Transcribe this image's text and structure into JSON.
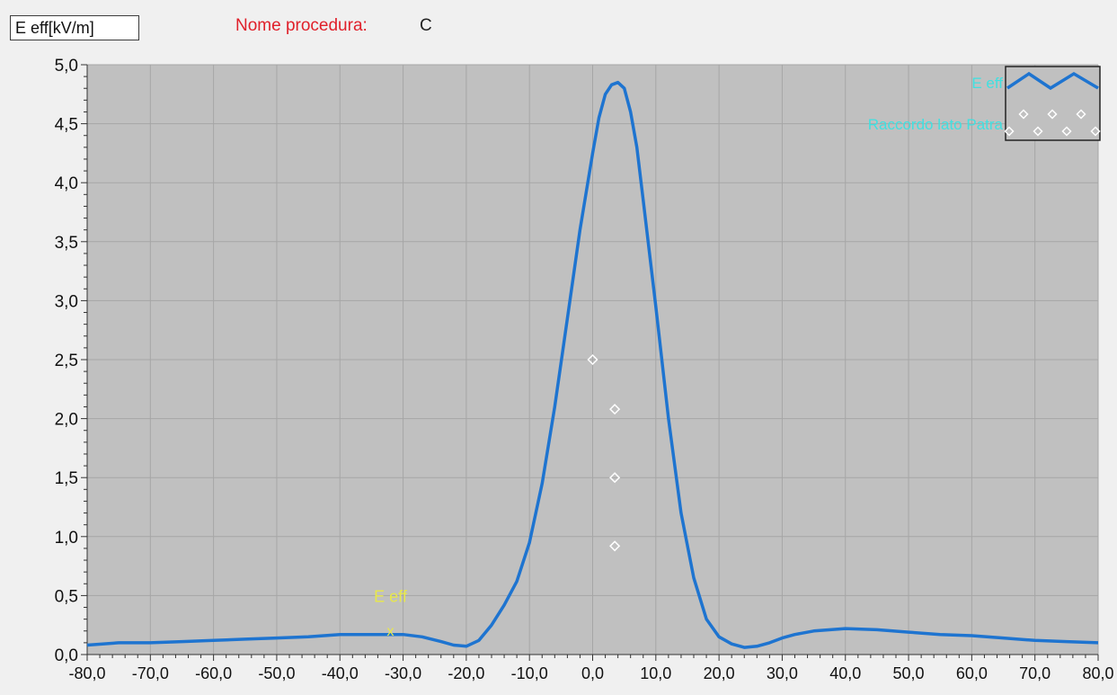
{
  "header": {
    "unit_label": "E eff[kV/m]",
    "procedure_label": "Nome procedura:",
    "procedure_value": "C"
  },
  "colors": {
    "plot_bg": "#c0c0c0",
    "grid": "#a6a6a6",
    "curve": "#1e74d0",
    "marker": "#ffffff",
    "cursor": "#e8e84a",
    "legend_text": "#40e0e0"
  },
  "chart_data": {
    "type": "line",
    "xlim": [
      -80,
      80
    ],
    "ylim": [
      0,
      5
    ],
    "x_ticks": [
      "-80,0",
      "-70,0",
      "-60,0",
      "-50,0",
      "-40,0",
      "-30,0",
      "-20,0",
      "-10,0",
      "0,0",
      "10,0",
      "20,0",
      "30,0",
      "40,0",
      "50,0",
      "60,0",
      "70,0",
      "80,0"
    ],
    "x_tick_values": [
      -80,
      -70,
      -60,
      -50,
      -40,
      -30,
      -20,
      -10,
      0,
      10,
      20,
      30,
      40,
      50,
      60,
      70,
      80
    ],
    "y_ticks": [
      "0,0",
      "0,5",
      "1,0",
      "1,5",
      "2,0",
      "2,5",
      "3,0",
      "3,5",
      "4,0",
      "4,5",
      "5,0"
    ],
    "y_tick_values": [
      0,
      0.5,
      1,
      1.5,
      2,
      2.5,
      3,
      3.5,
      4,
      4.5,
      5
    ],
    "grid": true,
    "legend_position": "top-right",
    "series": [
      {
        "name": "E eff",
        "style": "line",
        "x": [
          -80,
          -75,
          -70,
          -65,
          -60,
          -55,
          -50,
          -45,
          -40,
          -35,
          -30,
          -27,
          -24,
          -22,
          -20,
          -18,
          -16,
          -14,
          -12,
          -10,
          -8,
          -6,
          -4,
          -2,
          0,
          1,
          2,
          3,
          4,
          5,
          6,
          7,
          8,
          10,
          12,
          14,
          16,
          18,
          20,
          22,
          24,
          26,
          28,
          30,
          32,
          35,
          40,
          45,
          50,
          55,
          60,
          65,
          70,
          75,
          80
        ],
        "y": [
          0.08,
          0.1,
          0.1,
          0.11,
          0.12,
          0.13,
          0.14,
          0.15,
          0.17,
          0.17,
          0.17,
          0.15,
          0.11,
          0.08,
          0.07,
          0.12,
          0.25,
          0.42,
          0.62,
          0.95,
          1.45,
          2.1,
          2.85,
          3.6,
          4.25,
          4.55,
          4.75,
          4.83,
          4.85,
          4.8,
          4.6,
          4.3,
          3.85,
          2.95,
          2.0,
          1.2,
          0.65,
          0.3,
          0.15,
          0.09,
          0.06,
          0.07,
          0.1,
          0.14,
          0.17,
          0.2,
          0.22,
          0.21,
          0.19,
          0.17,
          0.16,
          0.14,
          0.12,
          0.11,
          0.1
        ]
      },
      {
        "name": "Raccordo lato Patra",
        "style": "markers",
        "x": [
          0,
          3.5,
          3.5,
          3.5
        ],
        "y": [
          2.5,
          2.08,
          1.5,
          0.92
        ]
      }
    ],
    "annotations": [
      {
        "text": "E eff",
        "x": -32,
        "y": 0.5,
        "marker": "x",
        "marker_y": 0.2
      }
    ]
  }
}
